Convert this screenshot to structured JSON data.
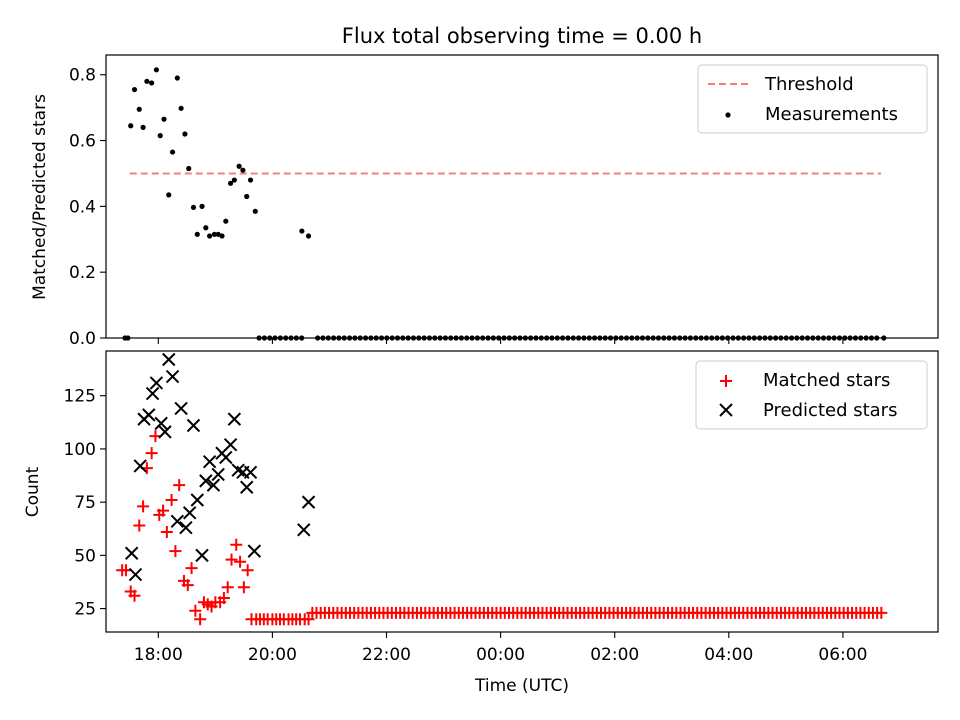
{
  "figure": {
    "title": "Flux total observing time = 0.00 h"
  },
  "chart_data": [
    {
      "type": "scatter",
      "xlabel": "",
      "ylabel": "Matched/Predicted stars",
      "ylim": [
        0,
        0.86
      ],
      "yticks": [
        "0.0",
        "0.2",
        "0.4",
        "0.6",
        "0.8"
      ],
      "xlim": [
        "17:05",
        "07:40"
      ],
      "xticks": [
        "18:00",
        "20:00",
        "22:00",
        "00:00",
        "02:00",
        "04:00",
        "06:00"
      ],
      "grid": false,
      "legend_position": "top-right",
      "threshold": {
        "name": "Threshold",
        "value": 0.5,
        "x_start": "17:30",
        "x_end": "06:40",
        "color": "#f08080"
      },
      "series": [
        {
          "name": "Measurements",
          "color": "#000000",
          "marker": "dot",
          "points": [
            [
              "17:25",
              0.0
            ],
            [
              "17:28",
              0.0
            ],
            [
              "17:31",
              0.645
            ],
            [
              "17:35",
              0.755
            ],
            [
              "17:40",
              0.695
            ],
            [
              "17:44",
              0.64
            ],
            [
              "17:48",
              0.78
            ],
            [
              "17:53",
              0.775
            ],
            [
              "17:58",
              0.815
            ],
            [
              "18:02",
              0.615
            ],
            [
              "18:06",
              0.665
            ],
            [
              "18:11",
              0.435
            ],
            [
              "18:15",
              0.565
            ],
            [
              "18:20",
              0.79
            ],
            [
              "18:24",
              0.698
            ],
            [
              "18:28",
              0.62
            ],
            [
              "18:32",
              0.515
            ],
            [
              "18:37",
              0.397
            ],
            [
              "18:41",
              0.315
            ],
            [
              "18:46",
              0.4
            ],
            [
              "18:50",
              0.335
            ],
            [
              "18:54",
              0.31
            ],
            [
              "18:59",
              0.315
            ],
            [
              "19:03",
              0.315
            ],
            [
              "19:07",
              0.31
            ],
            [
              "19:11",
              0.355
            ],
            [
              "19:16",
              0.47
            ],
            [
              "19:20",
              0.48
            ],
            [
              "19:25",
              0.522
            ],
            [
              "19:29",
              0.51
            ],
            [
              "19:33",
              0.43
            ],
            [
              "19:37",
              0.48
            ],
            [
              "19:42",
              0.385
            ],
            [
              "20:31",
              0.325
            ],
            [
              "20:38",
              0.31
            ]
          ],
          "zero_range": {
            "start": "19:46",
            "end": "06:38",
            "step_minutes": 5.6,
            "value": 0.0,
            "gaps": [
              [
                "20:34",
                "20:42"
              ]
            ]
          },
          "extra_points": [
            [
              "06:43",
              0.0
            ]
          ]
        }
      ]
    },
    {
      "type": "scatter",
      "xlabel": "Time (UTC)",
      "ylabel": "Count",
      "ylim": [
        14,
        146
      ],
      "yticks": [
        "25",
        "50",
        "75",
        "100",
        "125"
      ],
      "xlim": [
        "17:05",
        "07:40"
      ],
      "xticks": [
        "18:00",
        "20:00",
        "22:00",
        "00:00",
        "02:00",
        "04:00",
        "06:00"
      ],
      "grid": false,
      "legend_position": "top-right",
      "series": [
        {
          "name": "Matched stars",
          "color": "#ff0000",
          "marker": "plus",
          "points": [
            [
              "17:22",
              43
            ],
            [
              "17:26",
              43
            ],
            [
              "17:31",
              33
            ],
            [
              "17:35",
              31
            ],
            [
              "17:40",
              64
            ],
            [
              "17:44",
              73
            ],
            [
              "17:48",
              91
            ],
            [
              "17:53",
              98
            ],
            [
              "17:57",
              106
            ],
            [
              "18:01",
              69
            ],
            [
              "18:05",
              71
            ],
            [
              "18:09",
              61
            ],
            [
              "18:14",
              76
            ],
            [
              "18:18",
              52
            ],
            [
              "18:22",
              83
            ],
            [
              "18:27",
              38
            ],
            [
              "18:31",
              36
            ],
            [
              "18:35",
              44
            ],
            [
              "18:39",
              24
            ],
            [
              "18:44",
              20
            ],
            [
              "18:48",
              28
            ],
            [
              "18:52",
              27
            ],
            [
              "18:56",
              26
            ],
            [
              "19:00",
              28
            ],
            [
              "19:05",
              28
            ],
            [
              "19:09",
              30
            ],
            [
              "19:13",
              35
            ],
            [
              "19:17",
              48
            ],
            [
              "19:22",
              55
            ],
            [
              "19:26",
              47
            ],
            [
              "19:30",
              35
            ],
            [
              "19:34",
              43
            ],
            [
              "19:38",
              20
            ],
            [
              "19:43",
              20
            ],
            [
              "19:47",
              20
            ],
            [
              "19:51",
              20
            ],
            [
              "19:55",
              20
            ],
            [
              "20:00",
              20
            ],
            [
              "20:04",
              20
            ],
            [
              "20:08",
              20
            ],
            [
              "20:12",
              20
            ],
            [
              "20:17",
              20
            ],
            [
              "20:21",
              20
            ],
            [
              "20:25",
              20
            ],
            [
              "20:29",
              20
            ],
            [
              "20:34",
              20
            ],
            [
              "20:38",
              20
            ]
          ],
          "repeat": {
            "start": "20:42",
            "end": "06:44",
            "step_minutes": 4.4,
            "value": 23
          }
        },
        {
          "name": "Predicted stars",
          "color": "#000000",
          "marker": "x",
          "points": [
            [
              "17:32",
              51
            ],
            [
              "17:36",
              41
            ],
            [
              "17:41",
              92
            ],
            [
              "17:45",
              114
            ],
            [
              "17:50",
              116
            ],
            [
              "17:54",
              126
            ],
            [
              "17:58",
              131
            ],
            [
              "18:03",
              112
            ],
            [
              "18:07",
              108
            ],
            [
              "18:11",
              142
            ],
            [
              "18:15",
              134
            ],
            [
              "18:20",
              66
            ],
            [
              "18:24",
              119
            ],
            [
              "18:29",
              63
            ],
            [
              "18:33",
              70
            ],
            [
              "18:37",
              111
            ],
            [
              "18:41",
              76
            ],
            [
              "18:46",
              50
            ],
            [
              "18:50",
              85
            ],
            [
              "18:54",
              94
            ],
            [
              "18:58",
              83
            ],
            [
              "19:03",
              88
            ],
            [
              "19:07",
              98
            ],
            [
              "19:11",
              96
            ],
            [
              "19:16",
              102
            ],
            [
              "19:20",
              114
            ],
            [
              "19:24",
              90
            ],
            [
              "19:29",
              89
            ],
            [
              "19:33",
              82
            ],
            [
              "19:37",
              89
            ],
            [
              "19:41",
              52
            ],
            [
              "20:33",
              62
            ],
            [
              "20:38",
              75
            ]
          ]
        }
      ]
    }
  ]
}
